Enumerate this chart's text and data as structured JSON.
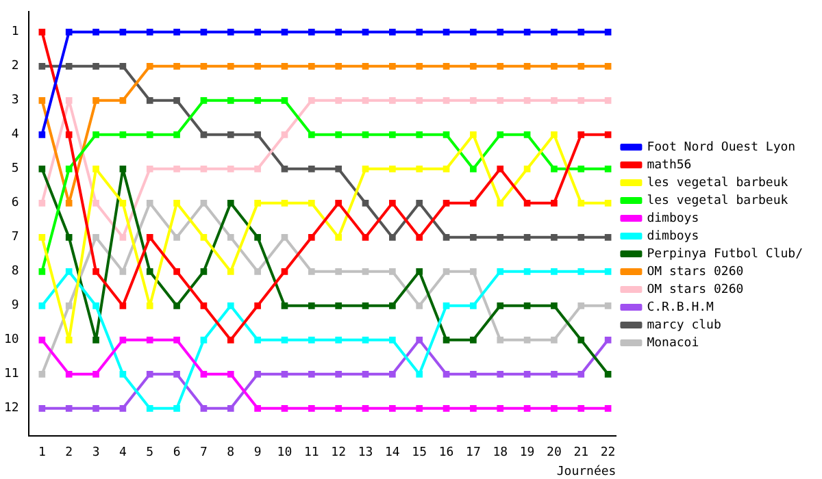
{
  "chart_data": {
    "type": "line",
    "xlabel": "Journées",
    "x": [
      1,
      2,
      3,
      4,
      5,
      6,
      7,
      8,
      9,
      10,
      11,
      12,
      13,
      14,
      15,
      16,
      17,
      18,
      19,
      20,
      21,
      22
    ],
    "xlim": [
      0.5,
      22.3
    ],
    "xticks": [
      1,
      2,
      3,
      4,
      5,
      6,
      7,
      8,
      9,
      10,
      11,
      12,
      13,
      14,
      15,
      16,
      17,
      18,
      19,
      20,
      21,
      22
    ],
    "ylim": [
      12.8,
      0.4
    ],
    "yticks": [
      1,
      2,
      3,
      4,
      5,
      6,
      7,
      8,
      9,
      10,
      11,
      12
    ],
    "grid": false,
    "legend": "right",
    "marker": "square",
    "series": [
      {
        "name": "Foot Nord Ouest Lyon",
        "color": "#0000ff",
        "values": [
          4,
          1,
          1,
          1,
          1,
          1,
          1,
          1,
          1,
          1,
          1,
          1,
          1,
          1,
          1,
          1,
          1,
          1,
          1,
          1,
          1,
          1
        ]
      },
      {
        "name": "math56",
        "color": "#ff0000",
        "values": [
          1,
          4,
          8,
          9,
          7,
          8,
          9,
          10,
          9,
          8,
          7,
          6,
          7,
          6,
          7,
          6,
          6,
          5,
          6,
          6,
          4,
          4
        ]
      },
      {
        "name": "les vegetal barbeuk",
        "color": "#ffff00",
        "values": [
          7,
          10,
          5,
          6,
          9,
          6,
          7,
          8,
          6,
          6,
          6,
          7,
          5,
          5,
          5,
          5,
          4,
          6,
          5,
          4,
          6,
          6
        ]
      },
      {
        "name": "les vegetal barbeuk",
        "color": "#00ff00",
        "values": [
          8,
          5,
          4,
          4,
          4,
          4,
          3,
          3,
          3,
          3,
          4,
          4,
          4,
          4,
          4,
          4,
          5,
          4,
          4,
          5,
          5,
          5
        ]
      },
      {
        "name": "dimboys",
        "color": "#ff00ff",
        "values": [
          10,
          11,
          11,
          10,
          10,
          10,
          11,
          11,
          12,
          12,
          12,
          12,
          12,
          12,
          12,
          12,
          12,
          12,
          12,
          12,
          12,
          12
        ]
      },
      {
        "name": "dimboys",
        "color": "#00ffff",
        "values": [
          9,
          8,
          9,
          11,
          12,
          12,
          10,
          9,
          10,
          10,
          10,
          10,
          10,
          10,
          11,
          9,
          9,
          8,
          8,
          8,
          8,
          8
        ]
      },
      {
        "name": "Perpinya Futbol Club/",
        "color": "#006400",
        "values": [
          5,
          7,
          10,
          5,
          8,
          9,
          8,
          6,
          7,
          9,
          9,
          9,
          9,
          9,
          8,
          10,
          10,
          9,
          9,
          9,
          10,
          11
        ]
      },
      {
        "name": "OM stars 0260",
        "color": "#ff8c00",
        "values": [
          3,
          6,
          3,
          3,
          2,
          2,
          2,
          2,
          2,
          2,
          2,
          2,
          2,
          2,
          2,
          2,
          2,
          2,
          2,
          2,
          2,
          2
        ]
      },
      {
        "name": "OM stars 0260",
        "color": "#ffc0cb",
        "values": [
          6,
          3,
          6,
          7,
          5,
          5,
          5,
          5,
          5,
          4,
          3,
          3,
          3,
          3,
          3,
          3,
          3,
          3,
          3,
          3,
          3,
          3
        ]
      },
      {
        "name": "C.R.B.H.M",
        "color": "#a050f0",
        "values": [
          12,
          12,
          12,
          12,
          11,
          11,
          12,
          12,
          11,
          11,
          11,
          11,
          11,
          11,
          10,
          11,
          11,
          11,
          11,
          11,
          11,
          10
        ]
      },
      {
        "name": "marcy club",
        "color": "#555555",
        "values": [
          2,
          2,
          2,
          2,
          3,
          3,
          4,
          4,
          4,
          5,
          5,
          5,
          6,
          7,
          6,
          7,
          7,
          7,
          7,
          7,
          7,
          7
        ]
      },
      {
        "name": "Monacoi",
        "color": "#c0c0c0",
        "values": [
          11,
          9,
          7,
          8,
          6,
          7,
          6,
          7,
          8,
          7,
          8,
          8,
          8,
          8,
          9,
          8,
          8,
          10,
          10,
          10,
          9,
          9
        ]
      }
    ]
  }
}
